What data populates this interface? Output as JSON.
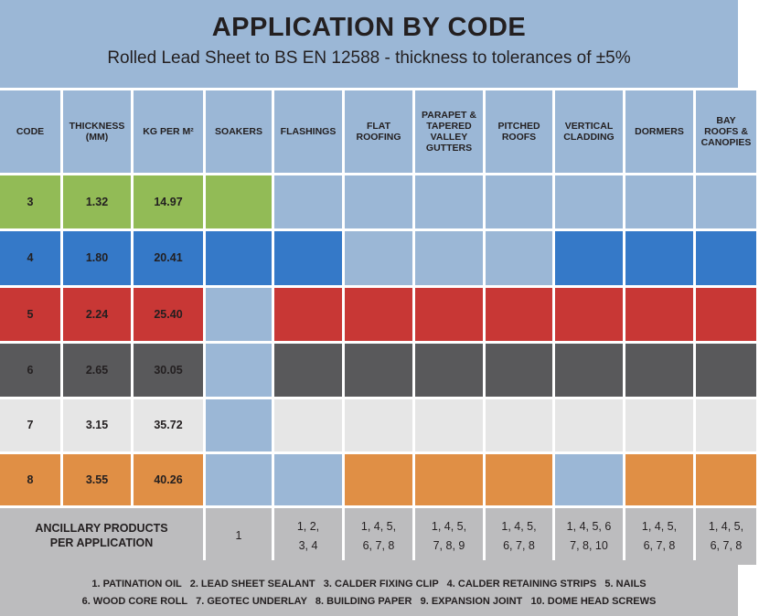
{
  "title": "APPLICATION BY CODE",
  "subtitle": "Rolled Lead Sheet to BS EN 12588 - thickness to tolerances of ±5%",
  "colors": {
    "light_blue": "#9bb7d6",
    "green": "#92bb56",
    "blue": "#3579c8",
    "red": "#c83735",
    "dark": "#59595b",
    "light_gray": "#e6e6e6",
    "orange": "#e08f45",
    "gray": "#bcbcbe"
  },
  "headers": [
    "CODE",
    "THICKNESS (MM)",
    "KG PER M²",
    "SOAKERS",
    "FLASHINGS",
    "FLAT ROOFING",
    "PARAPET & TAPERED VALLEY GUTTERS",
    "PITCHED ROOFS",
    "VERTICAL CLADDING",
    "DORMERS",
    "BAY ROOFS & CANOPIES"
  ],
  "rows": [
    {
      "code": "3",
      "thickness": "1.32",
      "kg": "14.97",
      "color": "green",
      "applies": [
        true,
        false,
        false,
        false,
        false,
        false,
        false,
        false
      ]
    },
    {
      "code": "4",
      "thickness": "1.80",
      "kg": "20.41",
      "color": "blue",
      "applies": [
        true,
        true,
        false,
        false,
        false,
        true,
        true,
        true
      ]
    },
    {
      "code": "5",
      "thickness": "2.24",
      "kg": "25.40",
      "color": "red",
      "applies": [
        false,
        true,
        true,
        true,
        true,
        true,
        true,
        true
      ]
    },
    {
      "code": "6",
      "thickness": "2.65",
      "kg": "30.05",
      "color": "dark",
      "applies": [
        false,
        true,
        true,
        true,
        true,
        true,
        true,
        true
      ]
    },
    {
      "code": "7",
      "thickness": "3.15",
      "kg": "35.72",
      "color": "light_gray",
      "applies": [
        false,
        true,
        true,
        true,
        true,
        true,
        true,
        true
      ]
    },
    {
      "code": "8",
      "thickness": "3.55",
      "kg": "40.26",
      "color": "orange",
      "applies": [
        false,
        false,
        true,
        true,
        true,
        false,
        true,
        true
      ]
    }
  ],
  "ancillary": {
    "label": "ANCILLARY PRODUCTS PER APPLICATION",
    "values": [
      "1",
      "1, 2,\n3, 4",
      "1, 4, 5,\n6, 7, 8",
      "1, 4, 5,\n7, 8, 9",
      "1, 4, 5,\n6, 7, 8",
      "1, 4, 5, 6\n7, 8, 10",
      "1, 4, 5,\n6, 7, 8",
      "1, 4, 5,\n6, 7, 8"
    ]
  },
  "legend": {
    "line1": "1. PATINATION OIL   2. LEAD SHEET SEALANT   3. CALDER FIXING CLIP   4. CALDER RETAINING STRIPS   5. NAILS",
    "line2": "6. WOOD CORE ROLL   7. GEOTEC UNDERLAY   8. BUILDING PAPER   9. EXPANSION JOINT   10. DOME HEAD SCREWS"
  }
}
